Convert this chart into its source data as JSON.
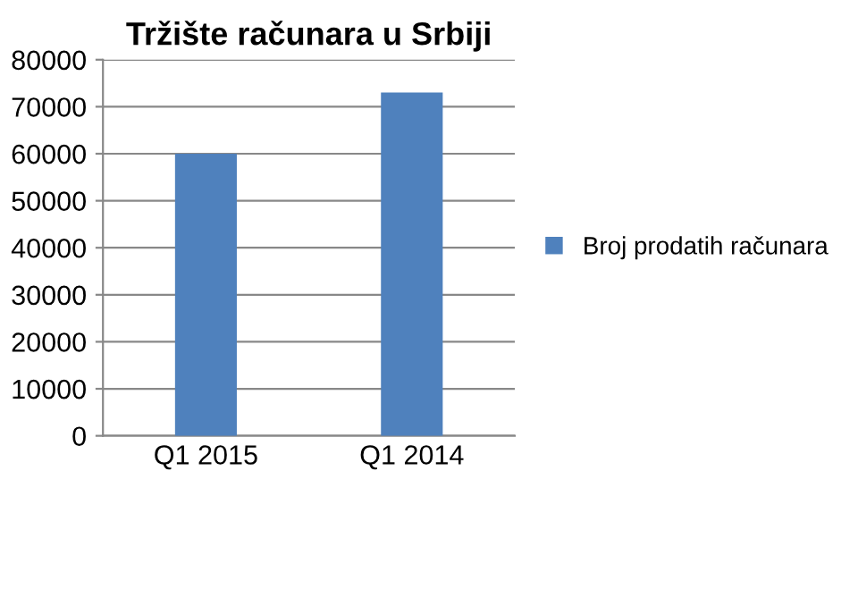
{
  "chart_data": {
    "type": "bar",
    "title": "Tržište računara u Srbiji",
    "categories": [
      "Q1 2015",
      "Q1 2014"
    ],
    "series": [
      {
        "name": "Broj prodatih računara",
        "color": "#4f81bd",
        "values": [
          60000,
          73000
        ]
      }
    ],
    "ylim": [
      0,
      80000
    ],
    "yticks": [
      0,
      10000,
      20000,
      30000,
      40000,
      50000,
      60000,
      70000,
      80000
    ],
    "grid": "y",
    "legend": "right"
  }
}
